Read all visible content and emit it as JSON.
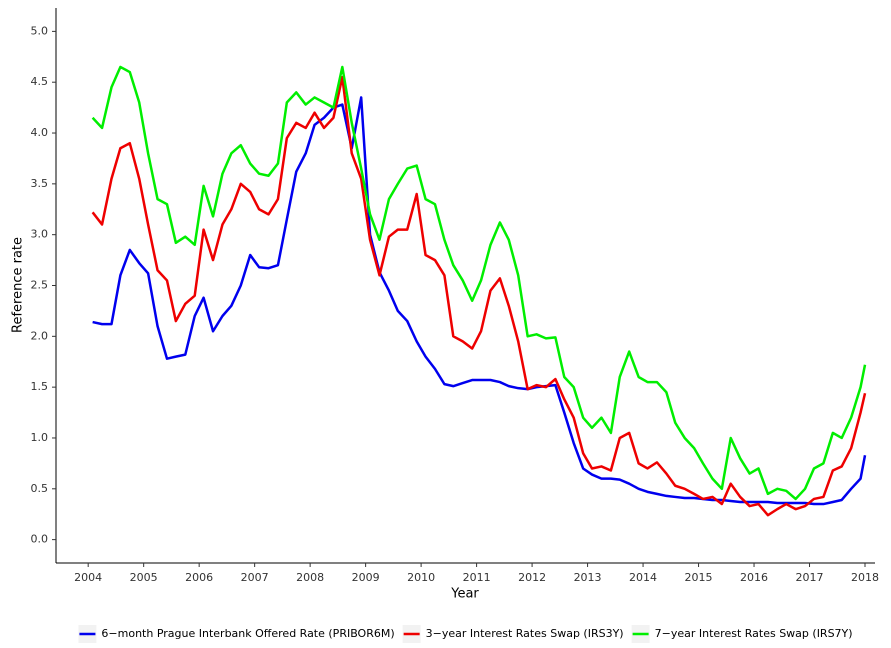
{
  "chart_data": {
    "type": "line",
    "x_label": "Year",
    "y_label": "Reference rate",
    "x": [
      2004.08,
      2004.25,
      2004.42,
      2004.58,
      2004.75,
      2004.92,
      2005.08,
      2005.25,
      2005.42,
      2005.58,
      2005.75,
      2005.92,
      2006.08,
      2006.25,
      2006.42,
      2006.58,
      2006.75,
      2006.92,
      2007.08,
      2007.25,
      2007.42,
      2007.58,
      2007.75,
      2007.92,
      2008.08,
      2008.25,
      2008.42,
      2008.58,
      2008.75,
      2008.92,
      2009.08,
      2009.25,
      2009.42,
      2009.58,
      2009.75,
      2009.92,
      2010.08,
      2010.25,
      2010.42,
      2010.58,
      2010.75,
      2010.92,
      2011.08,
      2011.25,
      2011.42,
      2011.58,
      2011.75,
      2011.92,
      2012.08,
      2012.25,
      2012.42,
      2012.58,
      2012.75,
      2012.92,
      2013.08,
      2013.25,
      2013.42,
      2013.58,
      2013.75,
      2013.92,
      2014.08,
      2014.25,
      2014.42,
      2014.58,
      2014.75,
      2014.92,
      2015.08,
      2015.25,
      2015.42,
      2015.58,
      2015.75,
      2015.92,
      2016.08,
      2016.25,
      2016.42,
      2016.58,
      2016.75,
      2016.92,
      2017.08,
      2017.25,
      2017.42,
      2017.58,
      2017.75,
      2017.92,
      2018.0
    ],
    "series": [
      {
        "name": "6−month Prague Interbank Offered Rate (PRIBOR6M)",
        "color": "#0000ee",
        "values": [
          2.14,
          2.12,
          2.12,
          2.6,
          2.85,
          2.72,
          2.62,
          2.1,
          1.78,
          1.8,
          1.82,
          2.2,
          2.38,
          2.05,
          2.2,
          2.3,
          2.5,
          2.8,
          2.68,
          2.67,
          2.7,
          3.15,
          3.62,
          3.8,
          4.08,
          4.15,
          4.25,
          4.28,
          3.85,
          4.35,
          3.0,
          2.63,
          2.45,
          2.25,
          2.15,
          1.95,
          1.8,
          1.68,
          1.53,
          1.51,
          1.54,
          1.57,
          1.57,
          1.57,
          1.55,
          1.51,
          1.49,
          1.48,
          1.5,
          1.51,
          1.52,
          1.25,
          0.95,
          0.7,
          0.64,
          0.6,
          0.6,
          0.59,
          0.55,
          0.5,
          0.47,
          0.45,
          0.43,
          0.42,
          0.41,
          0.41,
          0.4,
          0.39,
          0.39,
          0.38,
          0.37,
          0.37,
          0.37,
          0.37,
          0.36,
          0.36,
          0.36,
          0.36,
          0.35,
          0.35,
          0.37,
          0.39,
          0.5,
          0.6,
          0.83
        ]
      },
      {
        "name": "3−year Interest Rates Swap (IRS3Y)",
        "color": "#ee0000",
        "values": [
          3.22,
          3.1,
          3.55,
          3.85,
          3.9,
          3.55,
          3.1,
          2.65,
          2.55,
          2.15,
          2.32,
          2.4,
          3.05,
          2.75,
          3.1,
          3.25,
          3.5,
          3.42,
          3.25,
          3.2,
          3.35,
          3.95,
          4.1,
          4.05,
          4.2,
          4.05,
          4.15,
          4.55,
          3.8,
          3.55,
          2.95,
          2.6,
          2.98,
          3.05,
          3.05,
          3.4,
          2.8,
          2.75,
          2.6,
          2.0,
          1.95,
          1.88,
          2.05,
          2.45,
          2.57,
          2.3,
          1.95,
          1.48,
          1.52,
          1.5,
          1.58,
          1.38,
          1.2,
          0.85,
          0.7,
          0.72,
          0.68,
          1.0,
          1.05,
          0.75,
          0.7,
          0.76,
          0.65,
          0.53,
          0.5,
          0.45,
          0.4,
          0.42,
          0.35,
          0.55,
          0.42,
          0.33,
          0.35,
          0.24,
          0.3,
          0.35,
          0.3,
          0.33,
          0.4,
          0.42,
          0.68,
          0.72,
          0.9,
          1.25,
          1.44
        ]
      },
      {
        "name": "7−year Interest Rates Swap (IRS7Y)",
        "color": "#00ee00",
        "values": [
          4.15,
          4.05,
          4.45,
          4.65,
          4.6,
          4.3,
          3.8,
          3.35,
          3.3,
          2.92,
          2.98,
          2.9,
          3.48,
          3.18,
          3.6,
          3.8,
          3.88,
          3.7,
          3.6,
          3.58,
          3.7,
          4.3,
          4.4,
          4.28,
          4.35,
          4.3,
          4.25,
          4.65,
          4.1,
          3.65,
          3.2,
          2.95,
          3.35,
          3.5,
          3.65,
          3.68,
          3.35,
          3.3,
          2.95,
          2.7,
          2.55,
          2.35,
          2.55,
          2.9,
          3.12,
          2.95,
          2.6,
          2.0,
          2.02,
          1.98,
          1.99,
          1.6,
          1.5,
          1.2,
          1.1,
          1.2,
          1.05,
          1.6,
          1.85,
          1.6,
          1.55,
          1.55,
          1.45,
          1.15,
          1.0,
          0.9,
          0.75,
          0.6,
          0.5,
          1.0,
          0.8,
          0.65,
          0.7,
          0.45,
          0.5,
          0.48,
          0.4,
          0.5,
          0.7,
          0.75,
          1.05,
          1.0,
          1.2,
          1.5,
          1.72
        ]
      }
    ],
    "xlim": [
      2003.42,
      2018.18
    ],
    "xticks": [
      2004,
      2005,
      2006,
      2007,
      2008,
      2009,
      2010,
      2011,
      2012,
      2013,
      2014,
      2015,
      2016,
      2017,
      2018
    ],
    "ylim": [
      -0.23,
      5.23
    ],
    "yticks": [
      {
        "value": 0,
        "label": "0.0"
      },
      0.5,
      {
        "value": 1,
        "label": "1.0"
      },
      1.5,
      {
        "value": 2,
        "label": "2.0"
      },
      2.5,
      {
        "value": 3,
        "label": "3.0"
      },
      3.5,
      {
        "value": 4,
        "label": "4.0"
      },
      4.5,
      {
        "value": 5,
        "label": "5.0"
      }
    ],
    "grid": false,
    "legend": "bottom"
  }
}
